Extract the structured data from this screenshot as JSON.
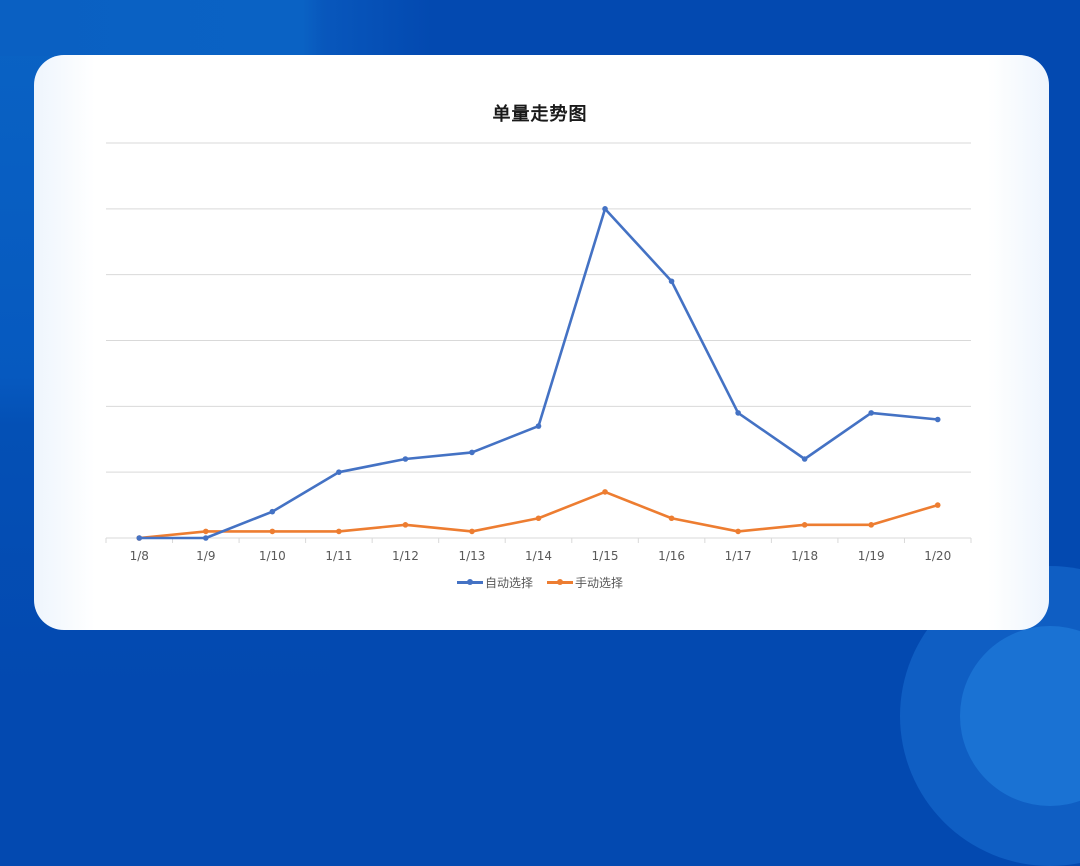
{
  "chart_data": {
    "type": "line",
    "title": "单量走势图",
    "xlabel": "",
    "ylabel": "",
    "categories": [
      "1/8",
      "1/9",
      "1/10",
      "1/11",
      "1/12",
      "1/13",
      "1/14",
      "1/15",
      "1/16",
      "1/17",
      "1/18",
      "1/19",
      "1/20"
    ],
    "series": [
      {
        "name": "自动选择",
        "color": "#4472c4",
        "values": [
          0,
          0,
          0.4,
          1.0,
          1.2,
          1.3,
          1.7,
          5.0,
          3.9,
          1.9,
          1.2,
          1.9,
          1.8
        ]
      },
      {
        "name": "手动选择",
        "color": "#ed7d31",
        "values": [
          0,
          0.1,
          0.1,
          0.1,
          0.2,
          0.1,
          0.3,
          0.7,
          0.3,
          0.1,
          0.2,
          0.2,
          0.5
        ]
      }
    ],
    "ylim": [
      0,
      6
    ],
    "y_tick_labels_visible": false,
    "grid": true,
    "gridline_count": 6,
    "legend_position": "bottom",
    "markers": true
  },
  "colors": {
    "background": "#0349b0",
    "card": "#ffffff",
    "gridline": "#d9d9d9",
    "axis_text": "#595959",
    "title_text": "#1a1a1a"
  }
}
